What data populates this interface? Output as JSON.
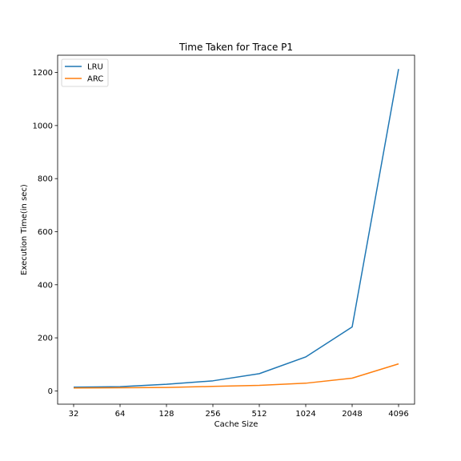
{
  "chart_data": {
    "type": "line",
    "title": "Time Taken for Trace P1",
    "xlabel": "Cache Size",
    "ylabel": "Execution Time(in sec)",
    "categories": [
      "32",
      "64",
      "128",
      "256",
      "512",
      "1024",
      "2048",
      "4096"
    ],
    "ylim": [
      -50,
      1265
    ],
    "yticks": [
      "0",
      "200",
      "400",
      "600",
      "800",
      "1000",
      "1200"
    ],
    "grid": false,
    "legend": "top-left",
    "series": [
      {
        "name": "LRU",
        "color": "#1f77b4",
        "values": [
          14,
          16,
          25,
          38,
          65,
          128,
          241,
          1213
        ]
      },
      {
        "name": "ARC",
        "color": "#ff7f0e",
        "values": [
          11,
          12,
          13,
          17,
          21,
          29,
          48,
          102
        ]
      }
    ]
  }
}
